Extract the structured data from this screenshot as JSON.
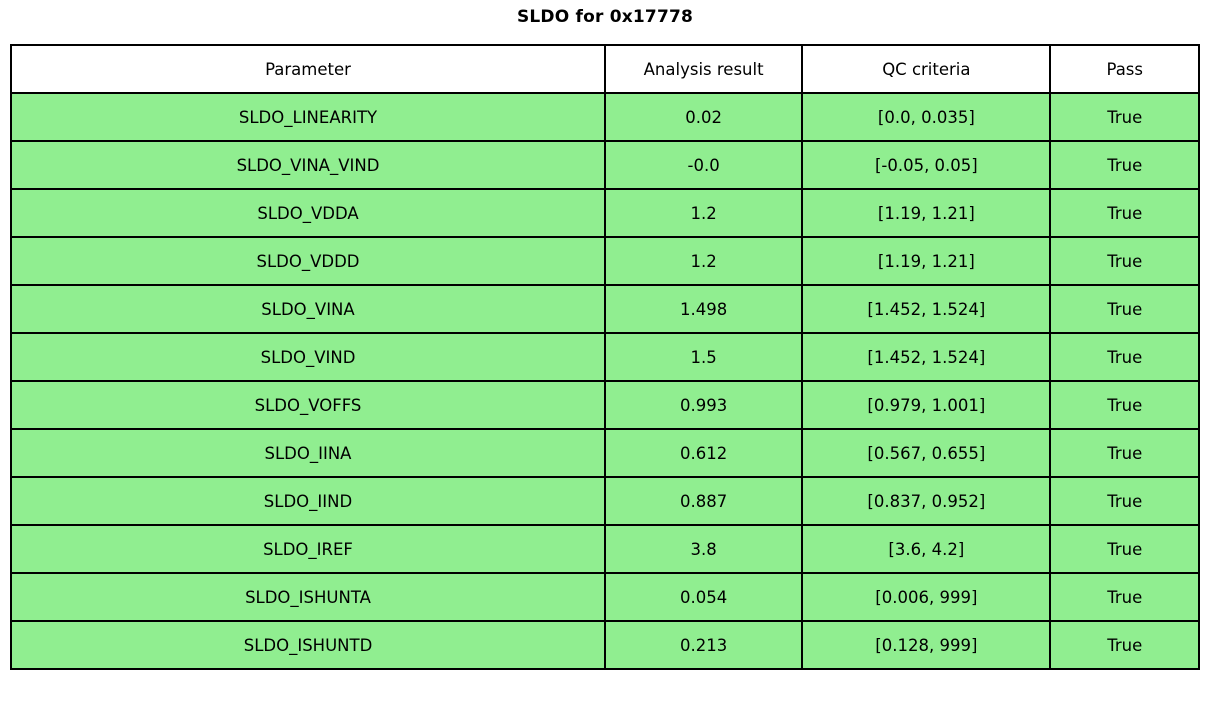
{
  "chart_data": {
    "type": "table",
    "title": "SLDO for 0x17778",
    "columns": [
      "Parameter",
      "Analysis result",
      "QC criteria",
      "Pass"
    ],
    "rows": [
      {
        "parameter": "SLDO_LINEARITY",
        "result": "0.02",
        "criteria": "[0.0, 0.035]",
        "pass": "True"
      },
      {
        "parameter": "SLDO_VINA_VIND",
        "result": "-0.0",
        "criteria": "[-0.05, 0.05]",
        "pass": "True"
      },
      {
        "parameter": "SLDO_VDDA",
        "result": "1.2",
        "criteria": "[1.19, 1.21]",
        "pass": "True"
      },
      {
        "parameter": "SLDO_VDDD",
        "result": "1.2",
        "criteria": "[1.19, 1.21]",
        "pass": "True"
      },
      {
        "parameter": "SLDO_VINA",
        "result": "1.498",
        "criteria": "[1.452, 1.524]",
        "pass": "True"
      },
      {
        "parameter": "SLDO_VIND",
        "result": "1.5",
        "criteria": "[1.452, 1.524]",
        "pass": "True"
      },
      {
        "parameter": "SLDO_VOFFS",
        "result": "0.993",
        "criteria": "[0.979, 1.001]",
        "pass": "True"
      },
      {
        "parameter": "SLDO_IINA",
        "result": "0.612",
        "criteria": "[0.567, 0.655]",
        "pass": "True"
      },
      {
        "parameter": "SLDO_IIND",
        "result": "0.887",
        "criteria": "[0.837, 0.952]",
        "pass": "True"
      },
      {
        "parameter": "SLDO_IREF",
        "result": "3.8",
        "criteria": "[3.6, 4.2]",
        "pass": "True"
      },
      {
        "parameter": "SLDO_ISHUNTA",
        "result": "0.054",
        "criteria": "[0.006, 999]",
        "pass": "True"
      },
      {
        "parameter": "SLDO_ISHUNTD",
        "result": "0.213",
        "criteria": "[0.128, 999]",
        "pass": "True"
      }
    ],
    "layout": {
      "header_row": true,
      "grid": true,
      "column_width_percent": [
        50.0,
        16.6,
        20.9,
        12.5
      ]
    }
  },
  "colors": {
    "pass_row_bg": "#90EE90",
    "header_bg": "#FFFFFF",
    "border": "#000000",
    "text": "#000000",
    "page_bg": "#FFFFFF"
  }
}
